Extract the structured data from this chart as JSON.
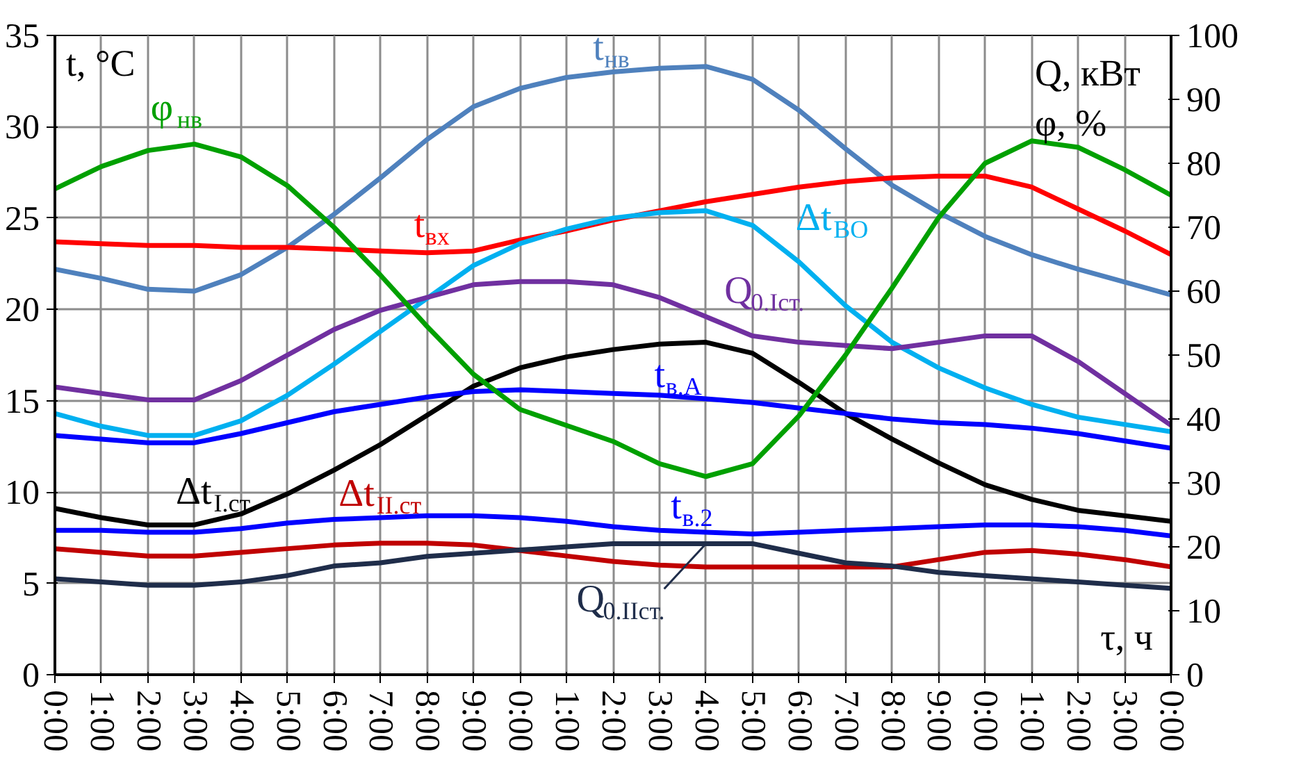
{
  "chart_data": {
    "type": "line",
    "xlabel": "τ, ч",
    "ylabel": "t, °C",
    "y2label": "Q, кВт\nφ, %",
    "categories": [
      "0:00",
      "1:00",
      "2:00",
      "3:00",
      "4:00",
      "5:00",
      "6:00",
      "7:00",
      "8:00",
      "9:00",
      "0:00",
      "1:00",
      "2:00",
      "3:00",
      "4:00",
      "5:00",
      "6:00",
      "7:00",
      "8:00",
      "9:00",
      "0:00",
      "1:00",
      "2:00",
      "3:00",
      "0:00"
    ],
    "ylim": [
      0,
      35
    ],
    "yticks": [
      0,
      5,
      10,
      15,
      20,
      25,
      30,
      35
    ],
    "y2lim": [
      0,
      100
    ],
    "y2ticks": [
      0,
      10,
      20,
      30,
      40,
      50,
      60,
      70,
      80,
      90,
      100
    ],
    "grid": true,
    "series": [
      {
        "name": "t$_{нв}$",
        "color": "#4f81bd",
        "values": [
          22.2,
          21.7,
          21.1,
          21.0,
          21.9,
          23.4,
          25.2,
          27.2,
          29.3,
          31.1,
          32.1,
          32.7,
          33.0,
          33.2,
          33.3,
          32.6,
          30.9,
          28.8,
          26.8,
          25.3,
          24.0,
          23.0,
          22.2,
          21.5,
          20.8
        ]
      },
      {
        "name": "t$_{вх}$",
        "color": "#ff0000",
        "values": [
          23.7,
          23.6,
          23.5,
          23.5,
          23.4,
          23.4,
          23.3,
          23.2,
          23.1,
          23.2,
          23.8,
          24.3,
          24.9,
          25.4,
          25.9,
          26.3,
          26.7,
          27.0,
          27.2,
          27.3,
          27.3,
          26.7,
          25.5,
          24.3,
          23.0
        ]
      },
      {
        "name": "Δt$_{ВО}$",
        "color": "#00b0f0",
        "values": [
          14.3,
          13.6,
          13.1,
          13.1,
          13.9,
          15.3,
          17.0,
          18.8,
          20.6,
          22.4,
          23.6,
          24.4,
          25.0,
          25.3,
          25.4,
          24.6,
          22.6,
          20.2,
          18.2,
          16.8,
          15.7,
          14.8,
          14.1,
          13.7,
          13.3
        ]
      },
      {
        "name": "Q$_{0.Iст.}$",
        "color": "#7030a0",
        "axis": "y2",
        "values": [
          45,
          44,
          43,
          43,
          46,
          50,
          54,
          57,
          59,
          61,
          61.5,
          61.5,
          61,
          59,
          56,
          53,
          52,
          51.5,
          51,
          52,
          53,
          53,
          49,
          44,
          39
        ]
      },
      {
        "name": "Δt$_{I.ст.}$",
        "color": "#000000",
        "values": [
          9.1,
          8.6,
          8.2,
          8.2,
          8.8,
          9.9,
          11.2,
          12.6,
          14.2,
          15.8,
          16.8,
          17.4,
          17.8,
          18.1,
          18.2,
          17.6,
          16.0,
          14.3,
          12.9,
          11.6,
          10.4,
          9.6,
          9.0,
          8.7,
          8.4
        ]
      },
      {
        "name": "t$_{в.А}$",
        "color": "#0000ff",
        "values": [
          13.1,
          12.9,
          12.7,
          12.7,
          13.2,
          13.8,
          14.4,
          14.8,
          15.2,
          15.5,
          15.6,
          15.5,
          15.4,
          15.3,
          15.1,
          14.9,
          14.6,
          14.3,
          14.0,
          13.8,
          13.7,
          13.5,
          13.2,
          12.8,
          12.4
        ]
      },
      {
        "name": "φ$_{нв}$",
        "color": "#00a000",
        "axis": "y2",
        "values": [
          76,
          79.5,
          82,
          83,
          81,
          76.5,
          70,
          62.5,
          54.5,
          47,
          41.5,
          39,
          36.5,
          33,
          31,
          33,
          40.5,
          50,
          60.5,
          71.5,
          80,
          83.5,
          82.5,
          79,
          75
        ]
      },
      {
        "name": "t$_{в.2}$",
        "color": "#0000ff",
        "values": [
          7.9,
          7.9,
          7.8,
          7.8,
          8.0,
          8.3,
          8.5,
          8.6,
          8.7,
          8.7,
          8.6,
          8.4,
          8.1,
          7.9,
          7.8,
          7.7,
          7.8,
          7.9,
          8.0,
          8.1,
          8.2,
          8.2,
          8.1,
          7.9,
          7.6
        ]
      },
      {
        "name": "Δt$_{II.ст}$",
        "color": "#c00000",
        "values": [
          6.9,
          6.7,
          6.5,
          6.5,
          6.7,
          6.9,
          7.1,
          7.2,
          7.2,
          7.1,
          6.8,
          6.5,
          6.2,
          6.0,
          5.9,
          5.9,
          5.9,
          5.9,
          5.9,
          6.3,
          6.7,
          6.8,
          6.6,
          6.3,
          5.9
        ]
      },
      {
        "name": "Q$_{0.IIст.}$",
        "color": "#1f2d4a",
        "axis": "y2",
        "values": [
          15,
          14.5,
          14,
          14,
          14.5,
          15.5,
          17,
          17.5,
          18.5,
          19,
          19.5,
          20,
          20.5,
          20.5,
          20.5,
          20.5,
          19,
          17.5,
          17,
          16,
          15.5,
          15,
          14.5,
          14,
          13.5
        ]
      }
    ]
  }
}
